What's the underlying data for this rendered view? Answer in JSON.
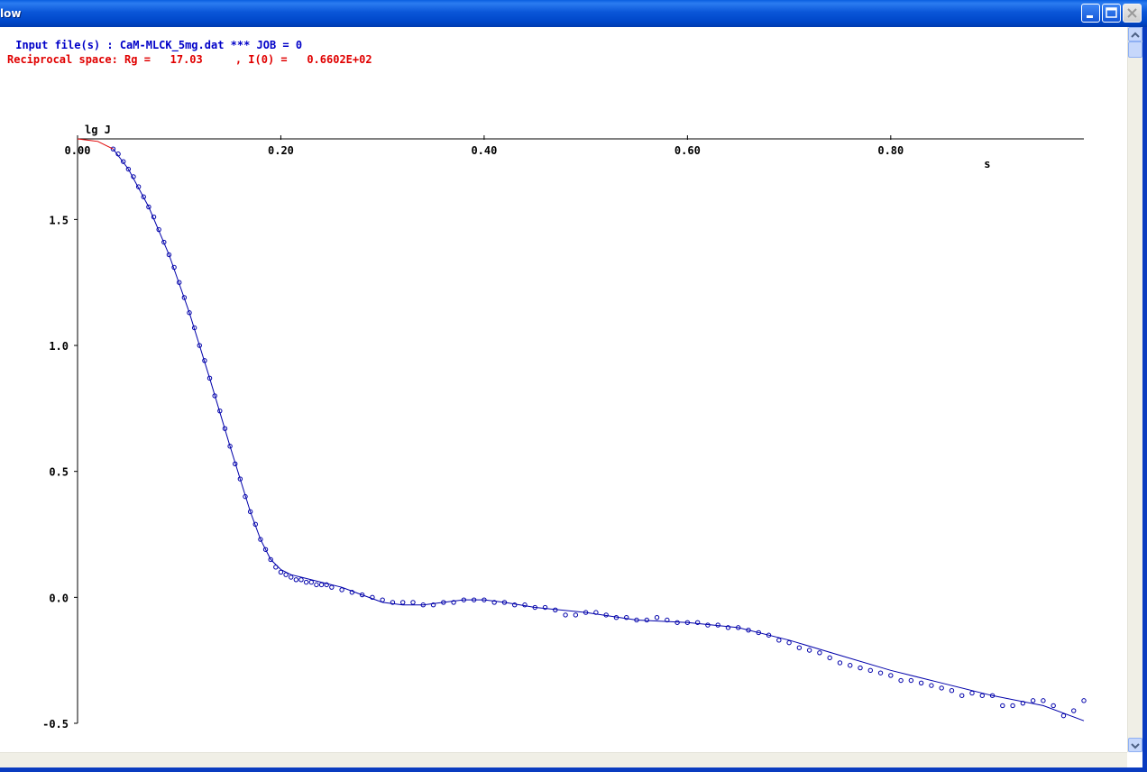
{
  "window": {
    "title": "low"
  },
  "header": {
    "input_line": " Input file(s) : CaM-MLCK_5mg.dat *** JOB = 0",
    "rg_line": "Reciprocal space: Rg =   17.03     , I(0) =   0.6602E+02"
  },
  "colors": {
    "input_line": "#0000c8",
    "rg_line": "#e00000",
    "data": "#0000aa",
    "fit": "#0000aa",
    "extrapolation": "#e00000"
  },
  "chart_data": {
    "type": "scatter",
    "title": "",
    "xlabel": "s",
    "ylabel": "lg J",
    "xlim": [
      0.0,
      0.99
    ],
    "ylim": [
      -0.5,
      1.82
    ],
    "x_ticks": [
      0.0,
      0.2,
      0.4,
      0.6,
      0.8
    ],
    "x_tick_labels": [
      "0.00",
      "0.20",
      "0.40",
      "0.60",
      "0.80"
    ],
    "y_ticks": [
      1.5,
      1.0,
      0.5,
      0.0,
      -0.5
    ],
    "y_tick_labels": [
      "1.5",
      "1.0",
      "0.5",
      "0.0",
      "-0.5"
    ],
    "x_axis_position": "top",
    "grid": false,
    "series": [
      {
        "style": "points",
        "x": [
          0.035,
          0.04,
          0.045,
          0.05,
          0.055,
          0.06,
          0.065,
          0.07,
          0.075,
          0.08,
          0.085,
          0.09,
          0.095,
          0.1,
          0.105,
          0.11,
          0.115,
          0.12,
          0.125,
          0.13,
          0.135,
          0.14,
          0.145,
          0.15,
          0.155,
          0.16,
          0.165,
          0.17,
          0.175,
          0.18,
          0.185,
          0.19,
          0.195,
          0.2,
          0.205,
          0.21,
          0.215,
          0.22,
          0.225,
          0.23,
          0.235,
          0.24,
          0.245,
          0.25,
          0.26,
          0.27,
          0.28,
          0.29,
          0.3,
          0.31,
          0.32,
          0.33,
          0.34,
          0.35,
          0.36,
          0.37,
          0.38,
          0.39,
          0.4,
          0.41,
          0.42,
          0.43,
          0.44,
          0.45,
          0.46,
          0.47,
          0.48,
          0.49,
          0.5,
          0.51,
          0.52,
          0.53,
          0.54,
          0.55,
          0.56,
          0.57,
          0.58,
          0.59,
          0.6,
          0.61,
          0.62,
          0.63,
          0.64,
          0.65,
          0.66,
          0.67,
          0.68,
          0.69,
          0.7,
          0.71,
          0.72,
          0.73,
          0.74,
          0.75,
          0.76,
          0.77,
          0.78,
          0.79,
          0.8,
          0.81,
          0.82,
          0.83,
          0.84,
          0.85,
          0.86,
          0.87,
          0.88,
          0.89,
          0.9,
          0.91,
          0.92,
          0.93,
          0.94,
          0.95,
          0.96,
          0.97,
          0.98,
          0.99
        ],
        "y": [
          1.78,
          1.76,
          1.73,
          1.7,
          1.67,
          1.63,
          1.59,
          1.55,
          1.51,
          1.46,
          1.41,
          1.36,
          1.31,
          1.25,
          1.19,
          1.13,
          1.07,
          1.0,
          0.94,
          0.87,
          0.8,
          0.74,
          0.67,
          0.6,
          0.53,
          0.47,
          0.4,
          0.34,
          0.29,
          0.23,
          0.19,
          0.15,
          0.12,
          0.1,
          0.09,
          0.08,
          0.07,
          0.07,
          0.06,
          0.06,
          0.05,
          0.05,
          0.05,
          0.04,
          0.03,
          0.02,
          0.01,
          0.0,
          -0.01,
          -0.02,
          -0.02,
          -0.02,
          -0.03,
          -0.03,
          -0.02,
          -0.02,
          -0.01,
          -0.01,
          -0.01,
          -0.02,
          -0.02,
          -0.03,
          -0.03,
          -0.04,
          -0.04,
          -0.05,
          -0.07,
          -0.07,
          -0.06,
          -0.06,
          -0.07,
          -0.08,
          -0.08,
          -0.09,
          -0.09,
          -0.08,
          -0.09,
          -0.1,
          -0.1,
          -0.1,
          -0.11,
          -0.11,
          -0.12,
          -0.12,
          -0.13,
          -0.14,
          -0.15,
          -0.17,
          -0.18,
          -0.2,
          -0.21,
          -0.22,
          -0.24,
          -0.26,
          -0.27,
          -0.28,
          -0.29,
          -0.3,
          -0.31,
          -0.33,
          -0.33,
          -0.34,
          -0.35,
          -0.36,
          -0.37,
          -0.39,
          -0.38,
          -0.39,
          -0.39,
          -0.43,
          -0.43,
          -0.42,
          -0.41,
          -0.41,
          -0.43,
          -0.47,
          -0.45,
          -0.41
        ]
      },
      {
        "style": "line",
        "x": [
          0.035,
          0.05,
          0.07,
          0.09,
          0.11,
          0.13,
          0.15,
          0.17,
          0.18,
          0.19,
          0.2,
          0.21,
          0.22,
          0.24,
          0.26,
          0.28,
          0.3,
          0.32,
          0.34,
          0.36,
          0.38,
          0.4,
          0.42,
          0.45,
          0.5,
          0.55,
          0.6,
          0.65,
          0.7,
          0.75,
          0.8,
          0.85,
          0.9,
          0.95,
          0.99
        ],
        "y": [
          1.78,
          1.7,
          1.55,
          1.36,
          1.13,
          0.87,
          0.6,
          0.34,
          0.23,
          0.15,
          0.11,
          0.09,
          0.08,
          0.06,
          0.04,
          0.01,
          -0.02,
          -0.03,
          -0.03,
          -0.02,
          -0.01,
          -0.01,
          -0.02,
          -0.04,
          -0.06,
          -0.09,
          -0.1,
          -0.12,
          -0.17,
          -0.23,
          -0.29,
          -0.34,
          -0.39,
          -0.43,
          -0.49
        ]
      },
      {
        "style": "line",
        "x": [
          0.0,
          0.01,
          0.02,
          0.03,
          0.035
        ],
        "y": [
          1.82,
          1.815,
          1.81,
          1.79,
          1.78
        ]
      }
    ]
  }
}
